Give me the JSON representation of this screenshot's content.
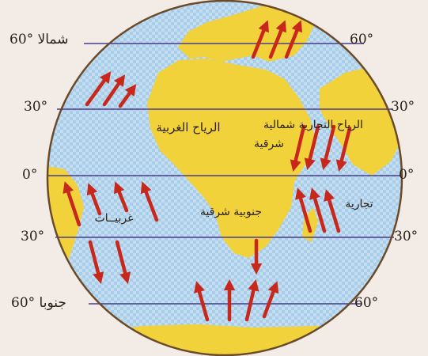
{
  "latitudes": [
    {
      "left": "60° شمالا",
      "right": "60°"
    },
    {
      "left": "30°",
      "right": "30°"
    },
    {
      "left": "0°",
      "right": "0°"
    },
    {
      "left": "30°",
      "right": "30°"
    },
    {
      "left": "60° جنوبا",
      "right": "60°"
    }
  ],
  "wind_labels": {
    "westerlies_north": "الرياح الغربية",
    "trade_ne_line1": "الرياح التجارية شمالية",
    "trade_ne_line2": "شرقية",
    "westerlies_south": "غربيــات",
    "trade_se": "جنوبية شرقية",
    "trade_word": "تجارية"
  },
  "colors": {
    "ocean": "#a8cde8",
    "land": "#f2d23a",
    "arrow": "#c8281c",
    "line": "#4a3c8c",
    "rim": "#6b4a2a"
  }
}
